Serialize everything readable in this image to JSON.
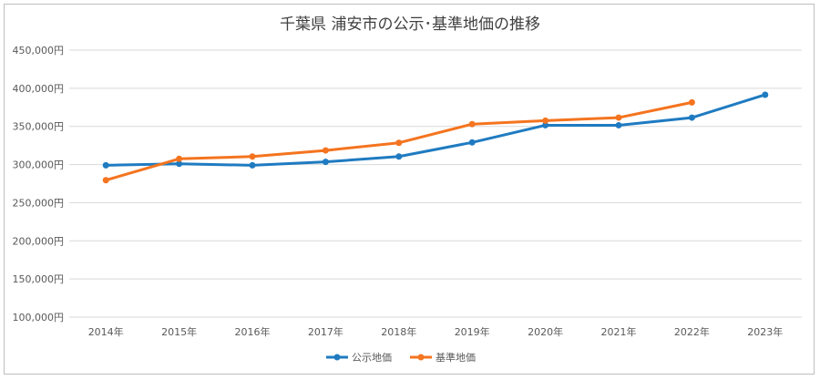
{
  "chart_data": {
    "type": "line",
    "title": "千葉県 浦安市の公示･基準地価の推移",
    "categories": [
      "2014年",
      "2015年",
      "2016年",
      "2017年",
      "2018年",
      "2019年",
      "2020年",
      "2021年",
      "2022年",
      "2023年"
    ],
    "y_tick_labels": [
      "100,000円",
      "150,000円",
      "200,000円",
      "250,000円",
      "300,000円",
      "350,000円",
      "400,000円",
      "450,000円"
    ],
    "ylim": [
      100000,
      450000
    ],
    "ytick_step": 50000,
    "grid": true,
    "legend_position": "bottom",
    "series": [
      {
        "name": "公示地価",
        "color": "#1f7bc1",
        "values": [
          299000,
          301000,
          299000,
          303500,
          310500,
          329000,
          351500,
          351500,
          361500,
          391500
        ]
      },
      {
        "name": "基準地価",
        "color": "#f4741f",
        "values": [
          279500,
          307500,
          310500,
          318500,
          328500,
          353000,
          357500,
          361500,
          381500,
          null
        ]
      }
    ]
  }
}
